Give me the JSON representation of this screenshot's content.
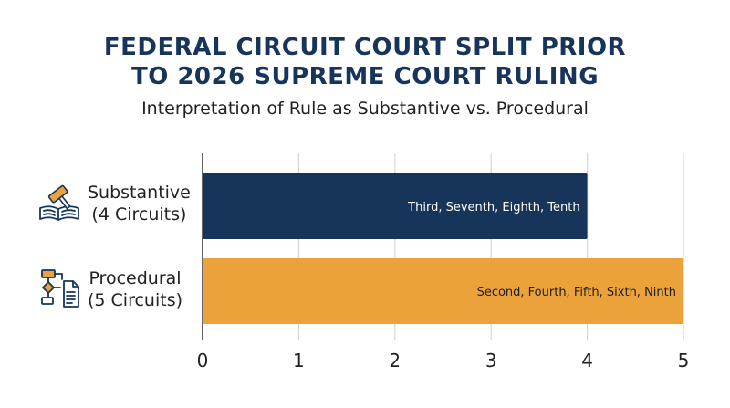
{
  "chart_data": {
    "type": "bar",
    "orientation": "horizontal",
    "title": [
      "FEDERAL CIRCUIT COURT SPLIT PRIOR",
      "TO 2026 SUPREME COURT RULING"
    ],
    "subtitle": "Interpretation of Rule as Substantive vs. Procedural",
    "categories": [
      {
        "name": "Substantive",
        "count_label": "(4 Circuits)",
        "icon": "gavel-book-icon"
      },
      {
        "name": "Procedural",
        "count_label": "(5 Circuits)",
        "icon": "flowchart-document-icon"
      }
    ],
    "values": [
      4,
      5
    ],
    "data_labels": [
      "Third, Seventh, Eighth, Tenth",
      "Second, Fourth, Fifth, Sixth, Ninth"
    ],
    "colors": [
      "#17345a",
      "#eba23a"
    ],
    "xlim": [
      0,
      5
    ],
    "xticks": [
      0,
      1,
      2,
      3,
      4,
      5
    ],
    "grid": true,
    "legend": "none",
    "xlabel": "",
    "ylabel": ""
  }
}
